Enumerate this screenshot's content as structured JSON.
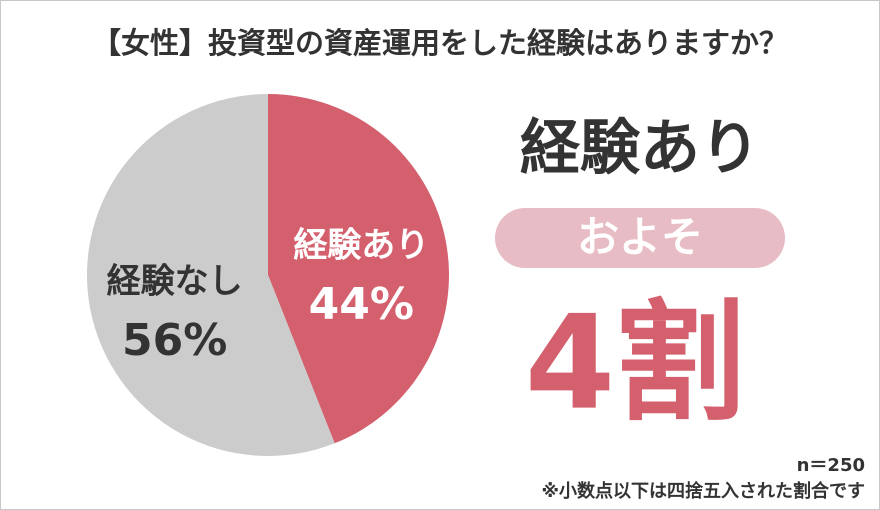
{
  "chart_data": {
    "type": "pie",
    "title": "【女性】投資型の資産運用をした経験はありますか？",
    "categories": [
      "経験あり",
      "経験なし"
    ],
    "values": [
      44,
      56
    ],
    "value_labels": [
      "44%",
      "56%"
    ],
    "colors": [
      "#d4606e",
      "#cccccc"
    ],
    "start_angle": 0,
    "direction": "clockwise",
    "callout": {
      "headline": "経験あり",
      "badge": "およそ",
      "big": "4割"
    },
    "sample": "n＝250",
    "note": "※小数点以下は四捨五入された割合です"
  }
}
